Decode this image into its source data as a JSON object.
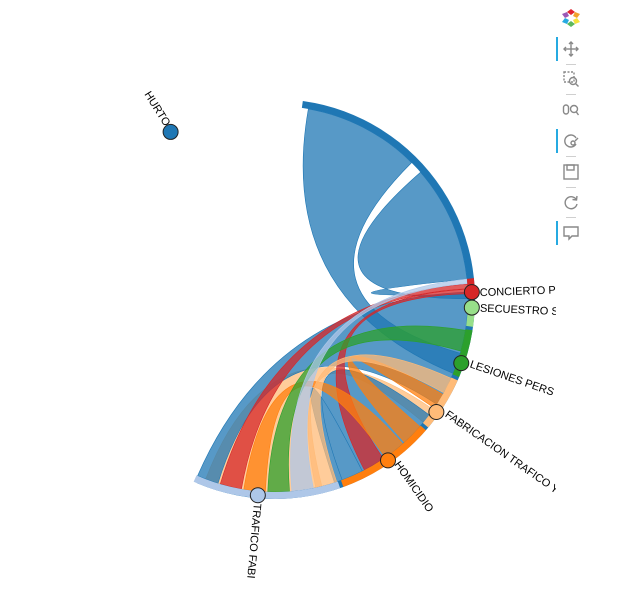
{
  "chart_data": {
    "type": "chord",
    "nodes": [
      {
        "name": "HURTO",
        "label": "HURTO",
        "color": "#1f77b4"
      },
      {
        "name": "CONCIERTO P",
        "label": "CONCIERTO P",
        "color": "#d62728"
      },
      {
        "name": "SECUESTRO S",
        "label": "SECUESTRO S",
        "color": "#98df8a"
      },
      {
        "name": "LESIONES PERS",
        "label": "LESIONES PERS",
        "color": "#2ca02c"
      },
      {
        "name": "FABRICACION TRAFICO Y",
        "label": "FABRICACION TRAFICO Y",
        "color": "#ffbb78"
      },
      {
        "name": "HOMICIDIO",
        "label": "HOMICIDIO",
        "color": "#ff7f0e"
      },
      {
        "name": "TRAFICO FABI",
        "label": "TRAFICO FABI",
        "color": "#aec7e8"
      }
    ],
    "links": [
      {
        "source": "HURTO",
        "target": "FABRICACION TRAFICO Y",
        "color": "#ffbb78"
      },
      {
        "source": "HURTO",
        "target": "HOMICIDIO",
        "color": "#1f77b4"
      },
      {
        "source": "HURTO",
        "target": "TRAFICO FABI",
        "color": "#1f77b4"
      },
      {
        "source": "HURTO",
        "target": "CONCIERTO P",
        "color": "#1f77b4"
      },
      {
        "source": "HURTO",
        "target": "LESIONES PERS",
        "color": "#1f77b4"
      },
      {
        "source": "CONCIERTO P",
        "target": "HOMICIDIO",
        "color": "#d62728"
      },
      {
        "source": "CONCIERTO P",
        "target": "TRAFICO FABI",
        "color": "#d62728"
      },
      {
        "source": "HOMICIDIO",
        "target": "TRAFICO FABI",
        "color": "#ff7f0e"
      },
      {
        "source": "HOMICIDIO",
        "target": "FABRICACION TRAFICO Y",
        "color": "#ff7f0e"
      },
      {
        "source": "LESIONES PERS",
        "target": "TRAFICO FABI",
        "color": "#2ca02c"
      },
      {
        "source": "TRAFICO FABI",
        "target": "CONCIERTO P",
        "color": "#aec7e8"
      },
      {
        "source": "FABRICACION TRAFICO Y",
        "target": "TRAFICO FABI",
        "color": "#ffbb78"
      }
    ]
  },
  "toolbar": {
    "tools": [
      {
        "name": "bokeh-logo",
        "active": false
      },
      {
        "name": "pan-tool",
        "active": true
      },
      {
        "name": "box-zoom-tool",
        "active": false
      },
      {
        "name": "wheel-zoom-tool",
        "active": false
      },
      {
        "name": "tap-tool",
        "active": true
      },
      {
        "name": "save-tool",
        "active": false
      },
      {
        "name": "reset-tool",
        "active": false
      },
      {
        "name": "hover-tool",
        "active": true
      }
    ]
  }
}
